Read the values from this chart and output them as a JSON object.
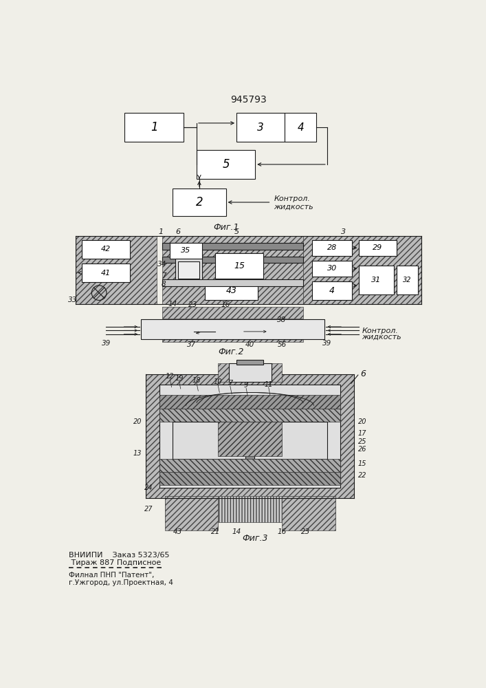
{
  "patent_number": "945793",
  "fig1_label": "Фиг.1",
  "fig2_label": "Фиг.2",
  "fig3_label": "Фиг.3",
  "kontrol_zhidkost": "Контрол.\nжидкость",
  "footer_line1": "ВНИИПИ    Заказ 5323/65",
  "footer_line2": " Тираж 887 Подписное",
  "footer_line3": "Филнал ПНП \"Патент\",",
  "footer_line4": "г.Ужгород, ул.Проектная, 4",
  "bg_color": "#f0efe8",
  "line_color": "#1a1a1a",
  "box_color": "#ffffff"
}
